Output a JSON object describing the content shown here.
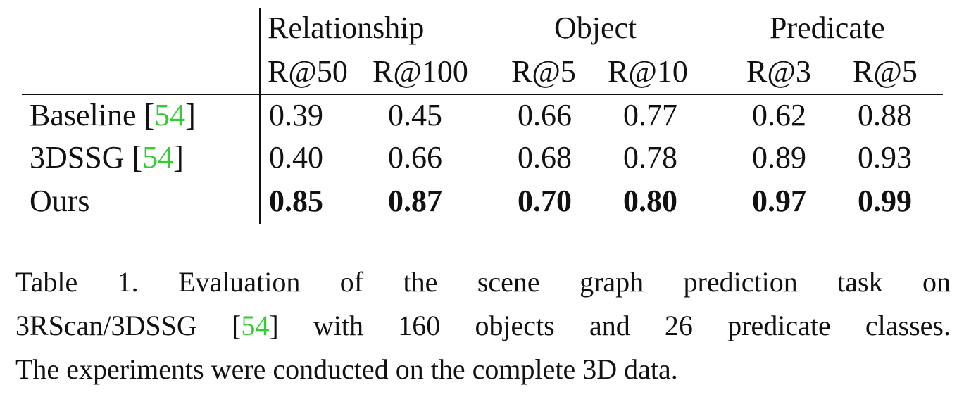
{
  "table": {
    "group_headers": [
      "Relationship",
      "Object",
      "Predicate"
    ],
    "metric_headers": [
      "R@50",
      "R@100",
      "R@5",
      "R@10",
      "R@3",
      "R@5"
    ],
    "rows": [
      {
        "method": "Baseline",
        "cite": "54",
        "values": [
          "0.39",
          "0.45",
          "0.66",
          "0.77",
          "0.62",
          "0.88"
        ],
        "bold": false
      },
      {
        "method": "3DSSG",
        "cite": "54",
        "values": [
          "0.40",
          "0.66",
          "0.68",
          "0.78",
          "0.89",
          "0.93"
        ],
        "bold": false
      },
      {
        "method": "Ours",
        "cite": "",
        "values": [
          "0.85",
          "0.87",
          "0.70",
          "0.80",
          "0.97",
          "0.99"
        ],
        "bold": true
      }
    ]
  },
  "caption": {
    "line1": "Table 1. Evaluation of the scene graph prediction task on",
    "line2_pre": "3RScan/3DSSG [",
    "line2_cite": "54",
    "line2_post": "] with 160 objects and 26 predicate classes.",
    "line3": "The experiments were conducted on the complete 3D data."
  }
}
